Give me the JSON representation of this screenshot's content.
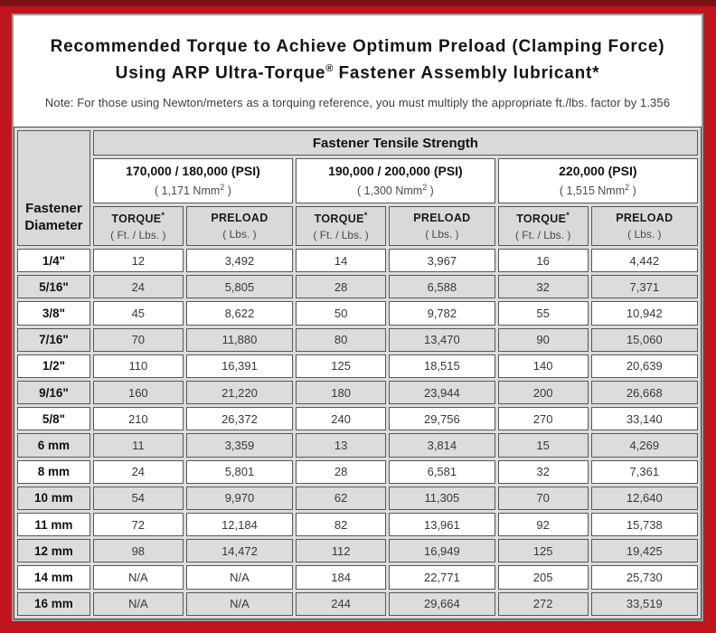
{
  "title": {
    "line1": "Recommended Torque to Achieve Optimum Preload (Clamping Force)",
    "line2_pre": "Using ARP Ultra-Torque",
    "line2_sup": "®",
    "line2_post": " Fastener Assembly lubricant*"
  },
  "note": "Note: For those using Newton/meters as a torquing reference, you must multiply the appropriate ft./lbs. factor by 1.356",
  "table": {
    "tensile_header": "Fastener Tensile Strength",
    "diameter_header_line1": "Fastener",
    "diameter_header_line2": "Diameter",
    "groups": [
      {
        "psi": "170,000 / 180,000 (PSI)",
        "nmm_pre": "( 1,171 Nmm",
        "nmm_sup": "2",
        "nmm_post": " )"
      },
      {
        "psi": "190,000 / 200,000 (PSI)",
        "nmm_pre": "( 1,300 Nmm",
        "nmm_sup": "2",
        "nmm_post": " )"
      },
      {
        "psi": "220,000 (PSI)",
        "nmm_pre": "( 1,515 Nmm",
        "nmm_sup": "2",
        "nmm_post": " )"
      }
    ],
    "col_torque": {
      "label": "TORQUE",
      "sup": "*",
      "unit": "( Ft. / Lbs. )"
    },
    "col_preload": {
      "label": "PRELOAD",
      "unit": "( Lbs. )"
    },
    "rows": [
      {
        "d": "1/4\"",
        "v": [
          "12",
          "3,492",
          "14",
          "3,967",
          "16",
          "4,442"
        ]
      },
      {
        "d": "5/16\"",
        "v": [
          "24",
          "5,805",
          "28",
          "6,588",
          "32",
          "7,371"
        ]
      },
      {
        "d": "3/8\"",
        "v": [
          "45",
          "8,622",
          "50",
          "9,782",
          "55",
          "10,942"
        ]
      },
      {
        "d": "7/16\"",
        "v": [
          "70",
          "11,880",
          "80",
          "13,470",
          "90",
          "15,060"
        ]
      },
      {
        "d": "1/2\"",
        "v": [
          "110",
          "16,391",
          "125",
          "18,515",
          "140",
          "20,639"
        ]
      },
      {
        "d": "9/16\"",
        "v": [
          "160",
          "21,220",
          "180",
          "23,944",
          "200",
          "26,668"
        ]
      },
      {
        "d": "5/8\"",
        "v": [
          "210",
          "26,372",
          "240",
          "29,756",
          "270",
          "33,140"
        ]
      },
      {
        "d": "6 mm",
        "v": [
          "11",
          "3,359",
          "13",
          "3,814",
          "15",
          "4,269"
        ]
      },
      {
        "d": "8 mm",
        "v": [
          "24",
          "5,801",
          "28",
          "6,581",
          "32",
          "7,361"
        ]
      },
      {
        "d": "10 mm",
        "v": [
          "54",
          "9,970",
          "62",
          "11,305",
          "70",
          "12,640"
        ]
      },
      {
        "d": "11 mm",
        "v": [
          "72",
          "12,184",
          "82",
          "13,961",
          "92",
          "15,738"
        ]
      },
      {
        "d": "12 mm",
        "v": [
          "98",
          "14,472",
          "112",
          "16,949",
          "125",
          "19,425"
        ]
      },
      {
        "d": "14 mm",
        "v": [
          "N/A",
          "N/A",
          "184",
          "22,771",
          "205",
          "25,730"
        ]
      },
      {
        "d": "16 mm",
        "v": [
          "N/A",
          "N/A",
          "244",
          "29,664",
          "272",
          "33,519"
        ]
      }
    ]
  },
  "colors": {
    "frame_red": "#c0151c",
    "top_strip": "#7d1016",
    "header_gray": "#d9d9d9",
    "row_gray": "#dcdcdc",
    "cell_border": "#585858"
  }
}
